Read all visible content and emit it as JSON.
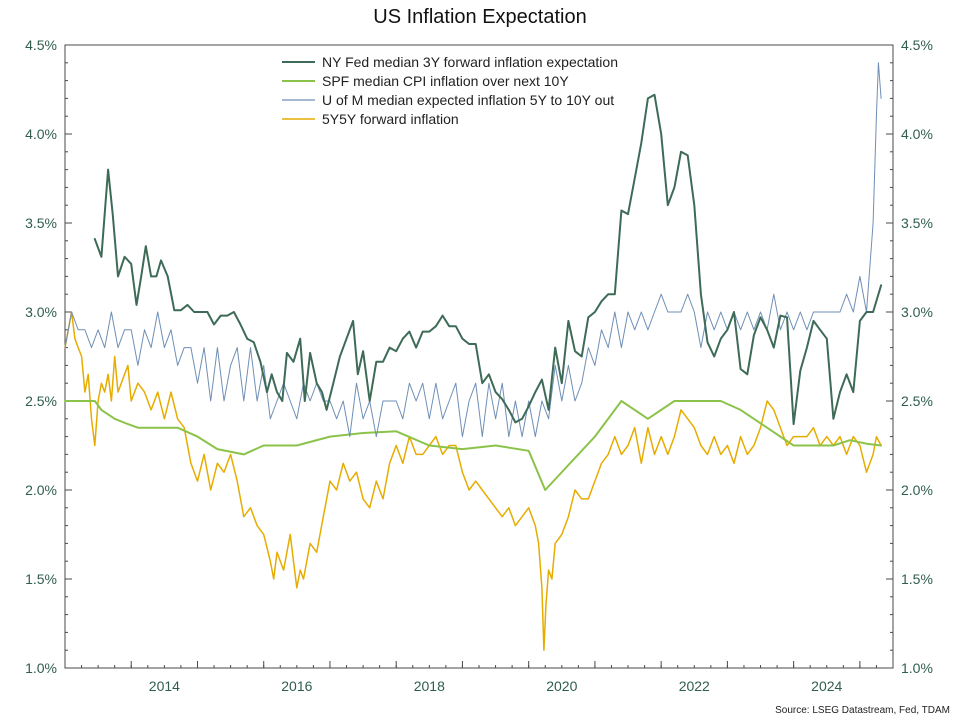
{
  "chart_data": {
    "type": "line",
    "title": "US Inflation Expectation",
    "source": "Source: LSEG Datastream, Fed, TDAM",
    "x_range": [
      2013.0,
      2025.5
    ],
    "ylim": [
      1.0,
      4.5
    ],
    "y_ticks": [
      1.0,
      1.5,
      2.0,
      2.5,
      3.0,
      3.5,
      4.0,
      4.5
    ],
    "y_tick_labels": [
      "1.0%",
      "1.5%",
      "2.0%",
      "2.5%",
      "3.0%",
      "3.5%",
      "4.0%",
      "4.5%"
    ],
    "x_ticks": [
      2014,
      2016,
      2018,
      2020,
      2022,
      2024
    ],
    "x_tick_labels": [
      "2014",
      "2016",
      "2018",
      "2020",
      "2022",
      "2024"
    ],
    "legend_position": "top-center",
    "grid": false,
    "series": [
      {
        "name": "NY Fed median 3Y forward inflation expectation",
        "color": "#3d6b57",
        "width": 2,
        "x": [
          2013.45,
          2013.55,
          2013.65,
          2013.72,
          2013.8,
          2013.9,
          2014.0,
          2014.08,
          2014.15,
          2014.22,
          2014.3,
          2014.38,
          2014.45,
          2014.55,
          2014.65,
          2014.75,
          2014.85,
          2014.95,
          2015.05,
          2015.15,
          2015.25,
          2015.35,
          2015.45,
          2015.55,
          2015.65,
          2015.75,
          2015.85,
          2015.95,
          2016.05,
          2016.12,
          2016.2,
          2016.28,
          2016.35,
          2016.45,
          2016.55,
          2016.62,
          2016.7,
          2016.8,
          2016.88,
          2016.95,
          2017.05,
          2017.15,
          2017.25,
          2017.35,
          2017.42,
          2017.5,
          2017.6,
          2017.7,
          2017.8,
          2017.9,
          2018.0,
          2018.1,
          2018.2,
          2018.3,
          2018.4,
          2018.5,
          2018.6,
          2018.7,
          2018.8,
          2018.9,
          2019.0,
          2019.1,
          2019.2,
          2019.3,
          2019.4,
          2019.5,
          2019.6,
          2019.7,
          2019.8,
          2019.9,
          2020.0,
          2020.1,
          2020.2,
          2020.3,
          2020.4,
          2020.5,
          2020.6,
          2020.7,
          2020.8,
          2020.9,
          2021.0,
          2021.1,
          2021.2,
          2021.3,
          2021.4,
          2021.5,
          2021.6,
          2021.7,
          2021.8,
          2021.9,
          2022.0,
          2022.1,
          2022.2,
          2022.3,
          2022.4,
          2022.5,
          2022.6,
          2022.7,
          2022.8,
          2022.9,
          2023.0,
          2023.1,
          2023.2,
          2023.3,
          2023.4,
          2023.5,
          2023.6,
          2023.7,
          2023.8,
          2023.9,
          2024.0,
          2024.1,
          2024.2,
          2024.3,
          2024.4,
          2024.5,
          2024.6,
          2024.7,
          2024.8,
          2024.9,
          2025.0,
          2025.1,
          2025.2,
          2025.32
        ],
        "y": [
          3.41,
          3.31,
          3.8,
          3.55,
          3.2,
          3.31,
          3.27,
          3.04,
          3.2,
          3.37,
          3.2,
          3.2,
          3.29,
          3.2,
          3.01,
          3.01,
          3.04,
          3.0,
          3.0,
          3.0,
          2.93,
          2.98,
          2.98,
          3.0,
          2.93,
          2.85,
          2.83,
          2.72,
          2.55,
          2.65,
          2.55,
          2.5,
          2.77,
          2.72,
          2.85,
          2.5,
          2.77,
          2.6,
          2.55,
          2.45,
          2.6,
          2.75,
          2.85,
          2.95,
          2.65,
          2.78,
          2.5,
          2.72,
          2.72,
          2.8,
          2.78,
          2.85,
          2.89,
          2.8,
          2.89,
          2.89,
          2.92,
          2.98,
          2.92,
          2.92,
          2.85,
          2.82,
          2.82,
          2.6,
          2.65,
          2.55,
          2.51,
          2.45,
          2.38,
          2.4,
          2.47,
          2.55,
          2.62,
          2.45,
          2.8,
          2.6,
          2.95,
          2.78,
          2.75,
          2.97,
          3.0,
          3.06,
          3.1,
          3.1,
          3.57,
          3.55,
          3.75,
          3.95,
          4.2,
          4.22,
          4.0,
          3.6,
          3.7,
          3.9,
          3.88,
          3.6,
          3.1,
          2.83,
          2.75,
          2.85,
          2.9,
          3.0,
          2.68,
          2.65,
          2.87,
          2.97,
          2.9,
          2.8,
          2.98,
          2.97,
          2.37,
          2.67,
          2.8,
          2.95,
          2.9,
          2.85,
          2.4,
          2.55,
          2.65,
          2.55,
          2.95,
          3.0,
          3.0,
          3.15
        ]
      },
      {
        "name": "SPF median CPI inflation over next 10Y",
        "color": "#8bc34a",
        "width": 2,
        "x": [
          2013.0,
          2013.45,
          2013.55,
          2013.75,
          2013.95,
          2014.1,
          2014.3,
          2014.7,
          2015.0,
          2015.3,
          2015.7,
          2016.0,
          2016.5,
          2017.0,
          2017.5,
          2018.0,
          2018.5,
          2019.0,
          2019.5,
          2020.0,
          2020.25,
          2021.0,
          2021.4,
          2021.8,
          2022.2,
          2022.5,
          2022.9,
          2023.2,
          2023.6,
          2024.0,
          2024.3,
          2024.6,
          2024.85,
          2025.1,
          2025.32
        ],
        "y": [
          2.5,
          2.5,
          2.45,
          2.4,
          2.37,
          2.35,
          2.35,
          2.35,
          2.3,
          2.23,
          2.2,
          2.25,
          2.25,
          2.3,
          2.32,
          2.33,
          2.25,
          2.23,
          2.25,
          2.22,
          2.0,
          2.3,
          2.5,
          2.4,
          2.5,
          2.5,
          2.5,
          2.45,
          2.35,
          2.25,
          2.25,
          2.25,
          2.28,
          2.26,
          2.25
        ]
      },
      {
        "name": "U of M median expected inflation 5Y to 10Y out",
        "color": "#6f8fb6",
        "width": 1,
        "x": [
          2013.0,
          2013.1,
          2013.2,
          2013.3,
          2013.4,
          2013.5,
          2013.6,
          2013.7,
          2013.8,
          2013.9,
          2014.0,
          2014.1,
          2014.2,
          2014.3,
          2014.4,
          2014.5,
          2014.6,
          2014.7,
          2014.8,
          2014.9,
          2015.0,
          2015.1,
          2015.2,
          2015.3,
          2015.4,
          2015.5,
          2015.6,
          2015.7,
          2015.8,
          2015.9,
          2016.0,
          2016.1,
          2016.2,
          2016.3,
          2016.4,
          2016.5,
          2016.6,
          2016.7,
          2016.8,
          2016.9,
          2017.0,
          2017.1,
          2017.2,
          2017.3,
          2017.4,
          2017.5,
          2017.6,
          2017.7,
          2017.8,
          2017.9,
          2018.0,
          2018.1,
          2018.2,
          2018.3,
          2018.4,
          2018.5,
          2018.6,
          2018.7,
          2018.8,
          2018.9,
          2019.0,
          2019.1,
          2019.2,
          2019.3,
          2019.4,
          2019.5,
          2019.6,
          2019.7,
          2019.8,
          2019.9,
          2020.0,
          2020.1,
          2020.2,
          2020.3,
          2020.4,
          2020.5,
          2020.6,
          2020.7,
          2020.8,
          2020.9,
          2021.0,
          2021.1,
          2021.2,
          2021.3,
          2021.4,
          2021.5,
          2021.6,
          2021.7,
          2021.8,
          2021.9,
          2022.0,
          2022.1,
          2022.2,
          2022.3,
          2022.4,
          2022.5,
          2022.6,
          2022.7,
          2022.8,
          2022.9,
          2023.0,
          2023.1,
          2023.2,
          2023.3,
          2023.4,
          2023.5,
          2023.6,
          2023.7,
          2023.8,
          2023.9,
          2024.0,
          2024.1,
          2024.2,
          2024.3,
          2024.4,
          2024.5,
          2024.6,
          2024.7,
          2024.8,
          2024.9,
          2025.0,
          2025.1,
          2025.2,
          2025.25,
          2025.28,
          2025.32
        ],
        "y": [
          2.8,
          3.0,
          2.9,
          2.9,
          2.8,
          2.9,
          2.8,
          3.0,
          2.8,
          2.9,
          2.9,
          2.7,
          2.9,
          2.8,
          3.0,
          2.8,
          2.9,
          2.7,
          2.8,
          2.8,
          2.6,
          2.8,
          2.5,
          2.8,
          2.5,
          2.7,
          2.8,
          2.5,
          2.8,
          2.5,
          2.7,
          2.4,
          2.5,
          2.6,
          2.5,
          2.4,
          2.6,
          2.5,
          2.6,
          2.5,
          2.5,
          2.4,
          2.5,
          2.3,
          2.6,
          2.4,
          2.5,
          2.3,
          2.5,
          2.5,
          2.5,
          2.4,
          2.6,
          2.5,
          2.6,
          2.4,
          2.6,
          2.4,
          2.5,
          2.6,
          2.3,
          2.5,
          2.6,
          2.3,
          2.6,
          2.4,
          2.6,
          2.3,
          2.5,
          2.3,
          2.5,
          2.3,
          2.5,
          2.4,
          2.7,
          2.5,
          2.7,
          2.5,
          2.6,
          2.8,
          2.7,
          2.9,
          2.8,
          3.0,
          2.8,
          3.0,
          2.9,
          3.0,
          2.9,
          3.0,
          3.1,
          3.0,
          3.0,
          3.0,
          3.1,
          3.0,
          2.8,
          3.0,
          2.9,
          3.0,
          2.9,
          3.0,
          2.9,
          3.0,
          2.9,
          3.0,
          2.9,
          3.1,
          2.9,
          3.0,
          2.9,
          3.0,
          2.9,
          3.0,
          3.0,
          3.0,
          3.0,
          3.0,
          3.1,
          3.0,
          3.2,
          3.0,
          3.5,
          4.1,
          4.4,
          4.2
        ]
      },
      {
        "name": "5Y5Y forward inflation",
        "color": "#e6ac00",
        "width": 1.5,
        "x": [
          2013.0,
          2013.05,
          2013.1,
          2013.15,
          2013.2,
          2013.25,
          2013.3,
          2013.35,
          2013.4,
          2013.45,
          2013.5,
          2013.55,
          2013.6,
          2013.65,
          2013.7,
          2013.75,
          2013.8,
          2013.85,
          2013.9,
          2013.95,
          2014.0,
          2014.1,
          2014.2,
          2014.3,
          2014.4,
          2014.5,
          2014.6,
          2014.7,
          2014.8,
          2014.9,
          2015.0,
          2015.1,
          2015.2,
          2015.3,
          2015.4,
          2015.5,
          2015.6,
          2015.7,
          2015.8,
          2015.9,
          2016.0,
          2016.1,
          2016.15,
          2016.2,
          2016.3,
          2016.4,
          2016.5,
          2016.55,
          2016.6,
          2016.7,
          2016.8,
          2016.9,
          2017.0,
          2017.1,
          2017.2,
          2017.3,
          2017.4,
          2017.5,
          2017.6,
          2017.7,
          2017.8,
          2017.9,
          2018.0,
          2018.1,
          2018.2,
          2018.3,
          2018.4,
          2018.5,
          2018.6,
          2018.7,
          2018.8,
          2018.9,
          2019.0,
          2019.1,
          2019.2,
          2019.3,
          2019.4,
          2019.5,
          2019.6,
          2019.7,
          2019.8,
          2019.9,
          2020.0,
          2020.05,
          2020.1,
          2020.15,
          2020.2,
          2020.23,
          2020.26,
          2020.3,
          2020.35,
          2020.4,
          2020.5,
          2020.6,
          2020.7,
          2020.8,
          2020.9,
          2021.0,
          2021.1,
          2021.2,
          2021.3,
          2021.4,
          2021.5,
          2021.6,
          2021.7,
          2021.8,
          2021.9,
          2022.0,
          2022.1,
          2022.2,
          2022.3,
          2022.4,
          2022.5,
          2022.6,
          2022.7,
          2022.8,
          2022.9,
          2023.0,
          2023.1,
          2023.2,
          2023.3,
          2023.4,
          2023.5,
          2023.6,
          2023.7,
          2023.8,
          2023.9,
          2024.0,
          2024.1,
          2024.2,
          2024.3,
          2024.4,
          2024.5,
          2024.6,
          2024.7,
          2024.8,
          2024.9,
          2025.0,
          2025.1,
          2025.2,
          2025.25,
          2025.32
        ],
        "y": [
          2.8,
          2.9,
          3.0,
          2.85,
          2.8,
          2.75,
          2.55,
          2.65,
          2.4,
          2.25,
          2.5,
          2.6,
          2.55,
          2.65,
          2.5,
          2.75,
          2.55,
          2.6,
          2.65,
          2.7,
          2.5,
          2.6,
          2.55,
          2.45,
          2.55,
          2.4,
          2.55,
          2.4,
          2.35,
          2.15,
          2.05,
          2.2,
          2.0,
          2.15,
          2.1,
          2.2,
          2.05,
          1.85,
          1.9,
          1.8,
          1.75,
          1.6,
          1.5,
          1.65,
          1.55,
          1.75,
          1.45,
          1.55,
          1.5,
          1.7,
          1.65,
          1.85,
          2.05,
          2.0,
          2.15,
          2.05,
          2.1,
          1.95,
          1.9,
          2.05,
          1.95,
          2.15,
          2.25,
          2.15,
          2.3,
          2.2,
          2.2,
          2.25,
          2.3,
          2.2,
          2.25,
          2.25,
          2.1,
          2.0,
          2.05,
          2.0,
          1.95,
          1.9,
          1.85,
          1.9,
          1.8,
          1.85,
          1.9,
          1.85,
          1.8,
          1.7,
          1.45,
          1.1,
          1.35,
          1.55,
          1.5,
          1.7,
          1.75,
          1.85,
          2.0,
          1.95,
          1.95,
          2.05,
          2.15,
          2.2,
          2.3,
          2.2,
          2.25,
          2.35,
          2.15,
          2.35,
          2.2,
          2.3,
          2.2,
          2.3,
          2.45,
          2.4,
          2.35,
          2.25,
          2.2,
          2.3,
          2.2,
          2.25,
          2.15,
          2.3,
          2.2,
          2.25,
          2.35,
          2.5,
          2.45,
          2.35,
          2.25,
          2.3,
          2.3,
          2.3,
          2.35,
          2.25,
          2.3,
          2.25,
          2.3,
          2.2,
          2.3,
          2.25,
          2.1,
          2.2,
          2.3,
          2.25
        ]
      }
    ]
  }
}
